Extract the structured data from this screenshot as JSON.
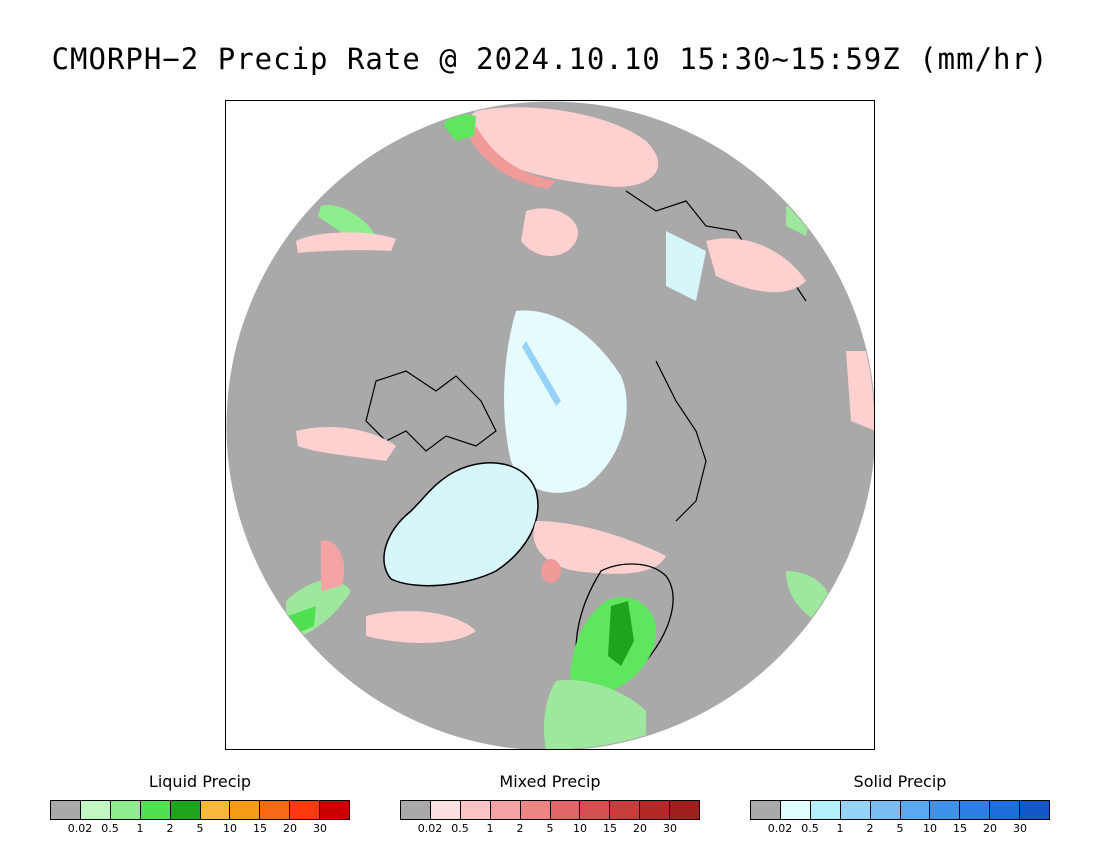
{
  "title": "CMORPH−2 Precip Rate @ 2024.10.10 15:30~15:59Z (mm/hr)",
  "map": {
    "background_color": "#a9a9a9",
    "land_outline_color": "#000000",
    "regions": [
      {
        "name": "greenland-ice",
        "type": "solid",
        "color": "#d6f6fa"
      },
      {
        "name": "arctic-ocean-ice",
        "type": "solid",
        "color": "#e6fbfd"
      },
      {
        "name": "scandinavia-rain",
        "type": "liquid",
        "color": "#5fe65f"
      },
      {
        "name": "norway-heavy-rain",
        "type": "liquid",
        "color": "#1ea51e"
      },
      {
        "name": "kamchatka-mixed",
        "type": "mixed",
        "color": "#ffd0d0"
      },
      {
        "name": "kamchatka-heavy-mixed",
        "type": "mixed",
        "color": "#f09a9a"
      },
      {
        "name": "barents-mixed",
        "type": "mixed",
        "color": "#ffd0d0"
      },
      {
        "name": "labrador-rain",
        "type": "liquid",
        "color": "#9ee89e"
      }
    ]
  },
  "legends": [
    {
      "title": "Liquid Precip",
      "colors": [
        "#a9a9a9",
        "#c0f8c0",
        "#8eee8e",
        "#4fe14f",
        "#1ea51e",
        "#f8b93a",
        "#f89c16",
        "#fa6a16",
        "#fb3a0a",
        "#c80000"
      ],
      "ticks": [
        "0.02",
        "0.5",
        "1",
        "2",
        "5",
        "10",
        "15",
        "20",
        "30"
      ]
    },
    {
      "title": "Mixed Precip",
      "colors": [
        "#a9a9a9",
        "#fde0e0",
        "#fcc4c4",
        "#f3a3a3",
        "#ec8585",
        "#e06666",
        "#d45050",
        "#c83c3c",
        "#b42828",
        "#a01e1e"
      ],
      "ticks": [
        "0.02",
        "0.5",
        "1",
        "2",
        "5",
        "10",
        "15",
        "20",
        "30"
      ]
    },
    {
      "title": "Solid Precip",
      "colors": [
        "#a9a9a9",
        "#e0feff",
        "#b4f0fa",
        "#96d2f8",
        "#78bef4",
        "#5aa8f0",
        "#3e92ea",
        "#2c80e4",
        "#1e6ede",
        "#1458c8"
      ],
      "ticks": [
        "0.02",
        "0.5",
        "1",
        "2",
        "5",
        "10",
        "15",
        "20",
        "30"
      ]
    }
  ]
}
